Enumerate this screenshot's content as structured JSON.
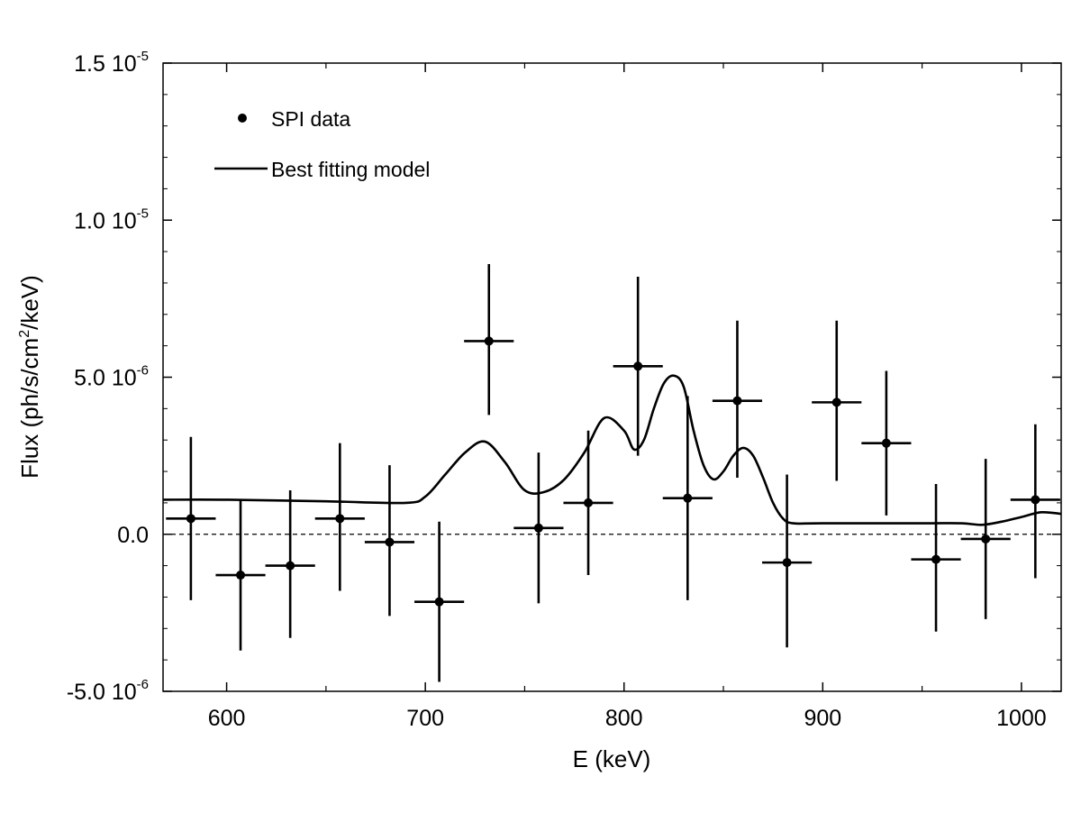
{
  "chart_data": {
    "type": "scatter",
    "xlabel": "E (keV)",
    "ylabel": {
      "prefix": "Flux (ph/s/cm",
      "sup": "2",
      "suffix": "/keV)"
    },
    "xlim": [
      568,
      1020
    ],
    "ylim": [
      -5e-06,
      1.5e-05
    ],
    "x_ticks": [
      {
        "value": 600,
        "label": "600"
      },
      {
        "value": 700,
        "label": "700"
      },
      {
        "value": 800,
        "label": "800"
      },
      {
        "value": 900,
        "label": "900"
      },
      {
        "value": 1000,
        "label": "1000"
      }
    ],
    "y_ticks": [
      {
        "value": 1.5e-05,
        "mant": "1.5 10",
        "exp": "-5"
      },
      {
        "value": 1e-05,
        "mant": "1.0 10",
        "exp": "-5"
      },
      {
        "value": 5e-06,
        "mant": "5.0 10",
        "exp": "-6"
      },
      {
        "value": 0.0,
        "mant": "0.0",
        "exp": ""
      },
      {
        "value": -5e-06,
        "mant": "-5.0 10",
        "exp": "-6"
      }
    ],
    "legend": {
      "position": "top-left",
      "entries": [
        {
          "label": "SPI data",
          "marker": "point"
        },
        {
          "label": "Best fitting model",
          "marker": "line"
        }
      ]
    },
    "zero_line": {
      "y": 0,
      "style": "dashed"
    },
    "series": [
      {
        "name": "SPI data",
        "kind": "points-with-errorbars",
        "points": [
          {
            "x": 582,
            "y": 5e-07,
            "xerr": 12.5,
            "ylo": -2.1e-06,
            "yhi": 3.1e-06
          },
          {
            "x": 607,
            "y": -1.3e-06,
            "xerr": 12.5,
            "ylo": -3.7e-06,
            "yhi": 1.1e-06
          },
          {
            "x": 632,
            "y": -1e-06,
            "xerr": 12.5,
            "ylo": -3.3e-06,
            "yhi": 1.4e-06
          },
          {
            "x": 657,
            "y": 5e-07,
            "xerr": 12.5,
            "ylo": -1.8e-06,
            "yhi": 2.9e-06
          },
          {
            "x": 682,
            "y": -2.5e-07,
            "xerr": 12.5,
            "ylo": -2.6e-06,
            "yhi": 2.2e-06
          },
          {
            "x": 707,
            "y": -2.15e-06,
            "xerr": 12.5,
            "ylo": -4.7e-06,
            "yhi": 4e-07
          },
          {
            "x": 732,
            "y": 6.15e-06,
            "xerr": 12.5,
            "ylo": 3.8e-06,
            "yhi": 8.6e-06
          },
          {
            "x": 757,
            "y": 2e-07,
            "xerr": 12.5,
            "ylo": -2.2e-06,
            "yhi": 2.6e-06
          },
          {
            "x": 782,
            "y": 1e-06,
            "xerr": 12.5,
            "ylo": -1.3e-06,
            "yhi": 3.3e-06
          },
          {
            "x": 807,
            "y": 5.35e-06,
            "xerr": 12.5,
            "ylo": 2.5e-06,
            "yhi": 8.2e-06
          },
          {
            "x": 832,
            "y": 1.15e-06,
            "xerr": 12.5,
            "ylo": -2.1e-06,
            "yhi": 4.4e-06
          },
          {
            "x": 857,
            "y": 4.25e-06,
            "xerr": 12.5,
            "ylo": 1.8e-06,
            "yhi": 6.8e-06
          },
          {
            "x": 882,
            "y": -9e-07,
            "xerr": 12.5,
            "ylo": -3.6e-06,
            "yhi": 1.9e-06
          },
          {
            "x": 907,
            "y": 4.2e-06,
            "xerr": 12.5,
            "ylo": 1.7e-06,
            "yhi": 6.8e-06
          },
          {
            "x": 932,
            "y": 2.9e-06,
            "xerr": 12.5,
            "ylo": 6e-07,
            "yhi": 5.2e-06
          },
          {
            "x": 957,
            "y": -8e-07,
            "xerr": 12.5,
            "ylo": -3.1e-06,
            "yhi": 1.6e-06
          },
          {
            "x": 982,
            "y": -1.5e-07,
            "xerr": 12.5,
            "ylo": -2.7e-06,
            "yhi": 2.4e-06
          },
          {
            "x": 1007,
            "y": 1.1e-06,
            "xerr": 12.5,
            "ylo": -1.4e-06,
            "yhi": 3.5e-06
          }
        ]
      },
      {
        "name": "Best fitting model",
        "kind": "line",
        "x": [
          568,
          600,
          650,
          690,
          700,
          710,
          720,
          730,
          740,
          750,
          760,
          770,
          780,
          790,
          800,
          805,
          810,
          815,
          820,
          825,
          830,
          835,
          840,
          845,
          850,
          855,
          860,
          865,
          870,
          875,
          880,
          885,
          900,
          950,
          970,
          980,
          990,
          1000,
          1010,
          1020
        ],
        "y": [
          1.1e-06,
          1.1e-06,
          1.05e-06,
          1e-06,
          1.2e-06,
          1.9e-06,
          2.6e-06,
          2.95e-06,
          2.3e-06,
          1.4e-06,
          1.35e-06,
          1.75e-06,
          2.6e-06,
          3.7e-06,
          3.3e-06,
          2.7e-06,
          3e-06,
          4e-06,
          4.8e-06,
          5.05e-06,
          4.7e-06,
          3.3e-06,
          2.2e-06,
          1.75e-06,
          2e-06,
          2.5e-06,
          2.75e-06,
          2.5e-06,
          1.8e-06,
          1e-06,
          5e-07,
          3.5e-07,
          3.5e-07,
          3.5e-07,
          3.5e-07,
          3e-07,
          4e-07,
          5.5e-07,
          7e-07,
          6.5e-07
        ]
      }
    ]
  }
}
